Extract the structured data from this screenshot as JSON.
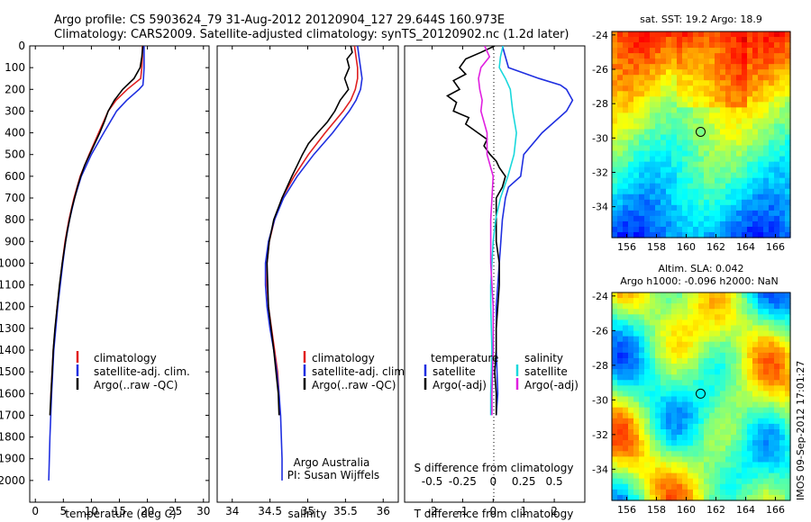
{
  "header": {
    "line1": "Argo profile: CS 5903624_79 31-Aug-2012 20120904_127 29.644S 160.973E",
    "line2": "Climatology: CARS2009. Satellite-adjusted climatology: synTS_20120902.nc (1.2d later)"
  },
  "credit": {
    "institution": "Argo Australia",
    "pi": "PI: Susan Wijffels"
  },
  "timestamp": "IMOS 09-Sep-2012 17:01:27",
  "depth_ticks": [
    "0",
    "100",
    "200",
    "300",
    "400",
    "500",
    "600",
    "700",
    "800",
    "900",
    "1000",
    "1100",
    "1200",
    "1300",
    "1400",
    "1500",
    "1600",
    "1700",
    "1800",
    "1900",
    "2000"
  ],
  "colors": {
    "climatology": "#e02020",
    "satellite": "#1f2fe0",
    "argo": "#000000",
    "sat_salinity": "#19d8dc",
    "argo_salinity": "#e020e0"
  },
  "chart_data": [
    {
      "type": "line",
      "name": "temperature panel",
      "xlabel": "temperature (deg C)",
      "xlim": [
        -1,
        31
      ],
      "ylim": [
        0,
        2100
      ],
      "xticks": [
        "0",
        "5",
        "10",
        "15",
        "20",
        "25",
        "30"
      ],
      "legend": [
        "climatology",
        "satellite-adj. clim.",
        "Argo(..raw -QC)"
      ],
      "series": [
        {
          "name": "climatology",
          "depth": [
            0,
            50,
            100,
            150,
            200,
            250,
            300,
            400,
            500,
            600,
            700,
            800,
            900,
            1000,
            1200,
            1400,
            1600,
            1700
          ],
          "values": [
            19.1,
            19.1,
            19.0,
            18.8,
            16.4,
            14.4,
            13.0,
            11.3,
            9.6,
            8.0,
            6.9,
            6.0,
            5.3,
            4.8,
            3.9,
            3.2,
            2.8,
            2.7
          ]
        },
        {
          "name": "satellite-adj. clim.",
          "depth": [
            0,
            50,
            100,
            150,
            180,
            200,
            250,
            300,
            400,
            500,
            600,
            700,
            800,
            900,
            1000,
            1200,
            1400,
            1600,
            1800,
            2000
          ],
          "values": [
            19.4,
            19.4,
            19.4,
            19.3,
            19.2,
            18.5,
            16.3,
            14.5,
            12.2,
            10.0,
            8.2,
            7.0,
            6.1,
            5.4,
            4.9,
            4.0,
            3.3,
            2.9,
            2.6,
            2.4
          ]
        },
        {
          "name": "Argo(..raw -QC)",
          "depth": [
            0,
            50,
            100,
            150,
            200,
            250,
            300,
            350,
            400,
            450,
            500,
            550,
            600,
            650,
            700,
            750,
            800,
            850,
            900,
            950,
            1000,
            1100,
            1200,
            1300,
            1400,
            1500,
            1600,
            1700
          ],
          "values": [
            19.2,
            19.0,
            18.7,
            17.6,
            15.6,
            14.1,
            13.0,
            12.3,
            11.5,
            10.6,
            9.7,
            8.8,
            8.1,
            7.5,
            7.0,
            6.5,
            6.1,
            5.7,
            5.4,
            5.1,
            4.8,
            4.3,
            3.9,
            3.5,
            3.2,
            3.0,
            2.8,
            2.6
          ]
        }
      ]
    },
    {
      "type": "line",
      "name": "salinity panel",
      "xlabel": "salinity",
      "xlim": [
        33.8,
        36.2
      ],
      "ylim": [
        0,
        2100
      ],
      "xticks": [
        "34",
        "34.5",
        "35",
        "35.5",
        "36"
      ],
      "legend": [
        "climatology",
        "satellite-adj. clim.",
        "Argo(..raw -QC)"
      ],
      "series": [
        {
          "name": "climatology",
          "depth": [
            0,
            50,
            100,
            150,
            200,
            250,
            300,
            400,
            500,
            600,
            700,
            800,
            900,
            1000,
            1100,
            1200,
            1300,
            1400,
            1500,
            1600,
            1700
          ],
          "values": [
            35.62,
            35.64,
            35.66,
            35.66,
            35.63,
            35.57,
            35.47,
            35.23,
            35.01,
            34.82,
            34.66,
            34.56,
            34.49,
            34.46,
            34.46,
            34.48,
            34.52,
            34.56,
            34.6,
            34.62,
            34.63
          ]
        },
        {
          "name": "satellite-adj. clim.",
          "depth": [
            0,
            50,
            100,
            150,
            200,
            250,
            300,
            400,
            500,
            600,
            700,
            800,
            900,
            1000,
            1100,
            1200,
            1300,
            1400,
            1500,
            1600,
            1700,
            1800,
            1900,
            2000
          ],
          "values": [
            35.66,
            35.68,
            35.7,
            35.72,
            35.7,
            35.64,
            35.55,
            35.33,
            35.08,
            34.86,
            34.68,
            34.56,
            34.48,
            34.44,
            34.44,
            34.46,
            34.5,
            34.55,
            34.59,
            34.62,
            34.64,
            34.65,
            34.66,
            34.66
          ]
        },
        {
          "name": "Argo(..raw -QC)",
          "depth": [
            0,
            30,
            60,
            100,
            150,
            200,
            250,
            300,
            350,
            400,
            450,
            500,
            550,
            600,
            700,
            800,
            900,
            1000,
            1200,
            1400,
            1600,
            1700
          ],
          "values": [
            35.57,
            35.59,
            35.52,
            35.55,
            35.49,
            35.54,
            35.43,
            35.36,
            35.26,
            35.13,
            35.01,
            34.93,
            34.86,
            34.79,
            34.66,
            34.55,
            34.49,
            34.46,
            34.48,
            34.55,
            34.61,
            34.62
          ]
        }
      ]
    },
    {
      "type": "line",
      "name": "difference panel",
      "xlabel": "T difference from climatology",
      "xlabel2": "S difference from climatology",
      "xlim": [
        -2.9,
        3.0
      ],
      "ylim": [
        0,
        2100
      ],
      "xticks": [
        "-2",
        "-1",
        "0",
        "1",
        "2"
      ],
      "xticks_s": [
        "-0.5",
        "-0.25",
        "0",
        "0.25",
        "0.5"
      ],
      "legend_titles": [
        "temperature",
        "salinity"
      ],
      "legend": [
        "satellite",
        "Argo(-adj)",
        "satellite",
        "Argo(-adj)"
      ],
      "series": [
        {
          "name": "temperature satellite",
          "depth": [
            0,
            50,
            100,
            150,
            180,
            200,
            250,
            300,
            400,
            500,
            600,
            650,
            700,
            800,
            900,
            1000,
            1100,
            1200,
            1400,
            1600,
            1700
          ],
          "values": [
            0.3,
            0.4,
            0.5,
            1.5,
            2.2,
            2.4,
            2.6,
            2.4,
            1.6,
            1.0,
            0.9,
            0.5,
            0.4,
            0.3,
            0.25,
            0.2,
            0.15,
            0.1,
            0.1,
            0.15,
            0.1
          ]
        },
        {
          "name": "temperature Argo(-adj)",
          "depth": [
            0,
            30,
            60,
            100,
            130,
            160,
            200,
            230,
            260,
            300,
            330,
            360,
            400,
            430,
            460,
            500,
            530,
            560,
            600,
            650,
            700,
            800,
            900,
            1000,
            1100,
            1200,
            1300,
            1400,
            1500,
            1600,
            1700
          ],
          "values": [
            0.05,
            -0.4,
            -0.9,
            -1.1,
            -0.9,
            -1.3,
            -1.1,
            -1.5,
            -1.2,
            -1.3,
            -0.8,
            -0.9,
            -0.5,
            -0.2,
            -0.3,
            -0.1,
            0.1,
            0.2,
            0.4,
            0.3,
            0.1,
            0.1,
            0.1,
            0.2,
            0.2,
            0.15,
            0.1,
            0.1,
            0.05,
            0.1,
            0.1
          ]
        },
        {
          "name": "salinity satellite",
          "depth": [
            0,
            50,
            100,
            150,
            200,
            250,
            300,
            400,
            500,
            600,
            700,
            800,
            900,
            1000,
            1100,
            1200,
            1400,
            1600,
            1700
          ],
          "values": [
            0.08,
            0.06,
            0.05,
            0.1,
            0.14,
            0.15,
            0.16,
            0.19,
            0.17,
            0.12,
            0.06,
            0.02,
            0.0,
            -0.01,
            -0.02,
            -0.02,
            -0.01,
            -0.02,
            -0.02
          ]
        },
        {
          "name": "salinity Argo(-adj)",
          "depth": [
            0,
            50,
            100,
            150,
            200,
            250,
            300,
            400,
            500,
            600,
            800,
            1000,
            1200,
            1400,
            1600,
            1700
          ],
          "values": [
            -0.07,
            -0.03,
            -0.1,
            -0.12,
            -0.11,
            -0.09,
            -0.1,
            -0.05,
            -0.05,
            0.0,
            -0.02,
            -0.02,
            0.0,
            0.0,
            -0.01,
            -0.01
          ]
        }
      ]
    }
  ],
  "maps": [
    {
      "name": "sst",
      "title": "sat. SST: 19.2 Argo: 18.9",
      "title2": "",
      "xticks": [
        "156",
        "158",
        "160",
        "162",
        "164",
        "166"
      ],
      "yticks": [
        "-24",
        "-26",
        "-28",
        "-30",
        "-32",
        "-34"
      ],
      "lon": [
        155,
        167
      ],
      "lat": [
        -35.8,
        -23.8
      ],
      "float_lon": 160.97,
      "float_lat": -29.64
    },
    {
      "name": "sla",
      "title": "Altim. SLA: 0.042",
      "title2": "Argo h1000: -0.096 h2000: NaN",
      "xticks": [
        "156",
        "158",
        "160",
        "162",
        "164",
        "166"
      ],
      "yticks": [
        "-24",
        "-26",
        "-28",
        "-30",
        "-32",
        "-34"
      ],
      "lon": [
        155,
        167
      ],
      "lat": [
        -35.8,
        -23.8
      ],
      "float_lon": 160.97,
      "float_lat": -29.64
    }
  ]
}
